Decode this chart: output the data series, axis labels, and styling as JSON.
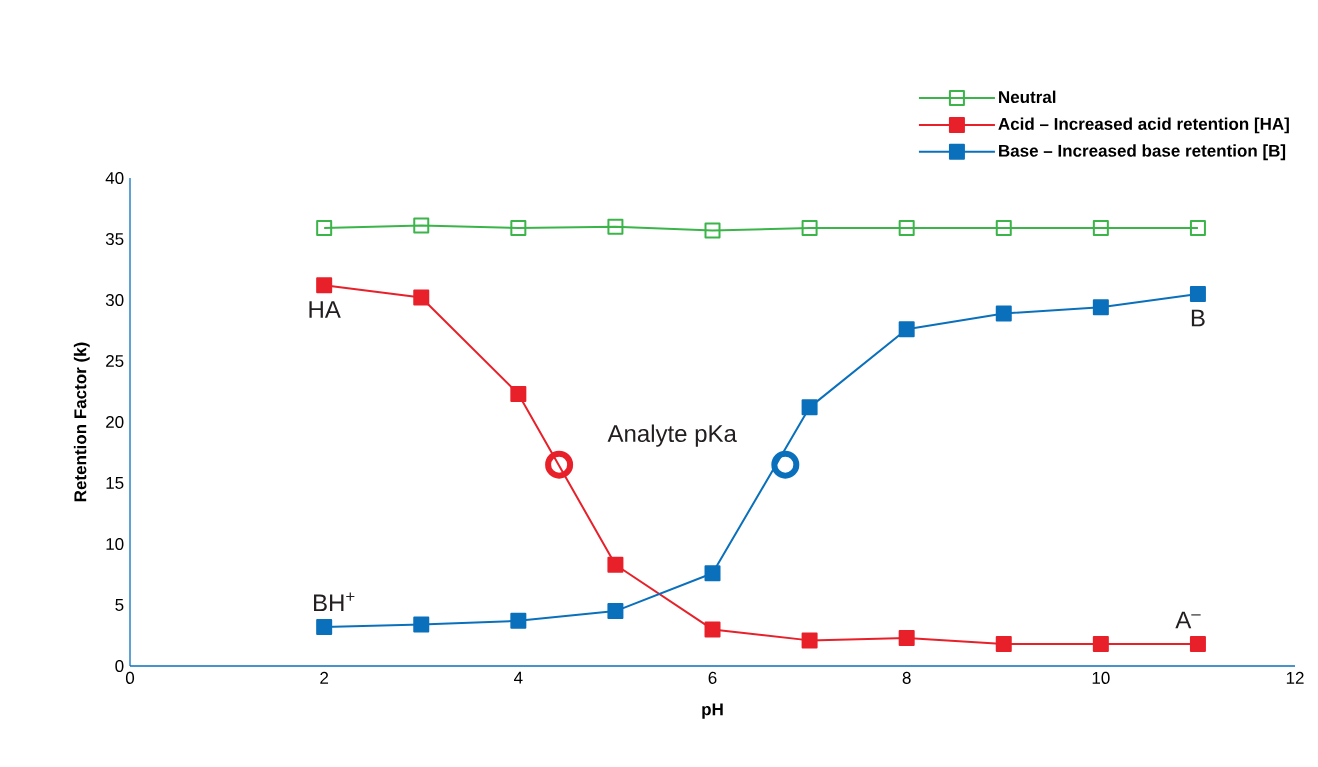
{
  "chart_data": {
    "type": "line",
    "xlabel": "pH",
    "ylabel": "Retention Factor (k)",
    "x": [
      2,
      3,
      4,
      5,
      6,
      7,
      8,
      9,
      10,
      11
    ],
    "series": [
      {
        "name": "Neutral",
        "color": "#3bb44a",
        "marker": "square",
        "values": [
          35.9,
          36.1,
          35.9,
          36.0,
          35.7,
          35.9,
          35.9,
          35.9,
          35.9,
          35.9
        ]
      },
      {
        "name": "Acid – Increased acid retention [HA]",
        "color": "#e8202a",
        "marker": "square",
        "values": [
          31.2,
          30.2,
          22.3,
          8.3,
          3.0,
          2.1,
          2.3,
          1.8,
          1.8,
          1.8
        ]
      },
      {
        "name": "Base – Increased base retention [B]",
        "color": "#0a70bc",
        "marker": "square",
        "values": [
          3.2,
          3.4,
          3.7,
          4.5,
          7.6,
          21.2,
          27.6,
          28.9,
          29.4,
          30.5
        ]
      },
      {
        "type": "scatter",
        "color": "#e8202a",
        "marker": "circle",
        "x": [
          4.42
        ],
        "values": [
          16.5
        ]
      },
      {
        "type": "scatter",
        "color": "#0a70bc",
        "marker": "circle",
        "x": [
          6.75
        ],
        "values": [
          16.5
        ]
      }
    ],
    "xlim": [
      0,
      12
    ],
    "xticks": [
      0,
      2,
      4,
      6,
      8,
      10,
      12
    ],
    "ylim": [
      0,
      40
    ],
    "yticks": [
      0,
      5,
      10,
      15,
      20,
      25,
      30,
      35,
      40
    ],
    "grid": false,
    "legend": "top right",
    "annotations": [
      {
        "text": "HA",
        "x": 2.0,
        "y": 31.2
      },
      {
        "text": "B",
        "x": 11.0,
        "y": 30.5
      },
      {
        "text": "BH$^{+}$",
        "x": 2.1,
        "y": 3.2
      },
      {
        "text": "A$^{–}$",
        "x": 10.9,
        "y": 1.8
      },
      "Analyte pKa"
    ]
  }
}
